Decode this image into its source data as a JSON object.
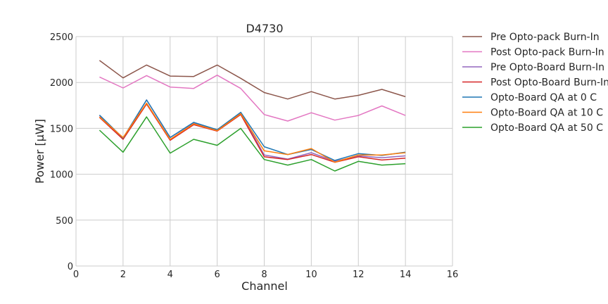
{
  "chart_data": {
    "type": "line",
    "title": "D4730",
    "xlabel": "Channel",
    "ylabel": "Power [μW]",
    "xlim": [
      0,
      16
    ],
    "ylim": [
      0,
      2500
    ],
    "xticks": [
      0,
      2,
      4,
      6,
      8,
      10,
      12,
      14,
      16
    ],
    "yticks": [
      0,
      500,
      1000,
      1500,
      2000,
      2500
    ],
    "grid": true,
    "legend_position": "outside-right-top",
    "x": [
      1,
      2,
      3,
      4,
      5,
      6,
      7,
      8,
      9,
      10,
      11,
      12,
      13,
      14
    ],
    "series": [
      {
        "name": "Pre Opto-pack Burn-In",
        "color": "#8c564b",
        "values": [
          2240,
          2050,
          2190,
          2070,
          2065,
          2190,
          2045,
          1890,
          1820,
          1900,
          1820,
          1860,
          1925,
          1845
        ]
      },
      {
        "name": "Post Opto-pack Burn-In",
        "color": "#e377c2",
        "values": [
          2060,
          1940,
          2075,
          1950,
          1935,
          2080,
          1935,
          1650,
          1580,
          1670,
          1590,
          1640,
          1745,
          1640
        ]
      },
      {
        "name": "Pre Opto-Board Burn-In",
        "color": "#9467bd",
        "values": [
          1640,
          1390,
          1810,
          1400,
          1560,
          1480,
          1670,
          1210,
          1165,
          1235,
          1140,
          1200,
          1180,
          1200
        ]
      },
      {
        "name": "Post Opto-Board Burn-In",
        "color": "#d62728",
        "values": [
          1620,
          1380,
          1765,
          1370,
          1540,
          1470,
          1650,
          1190,
          1160,
          1215,
          1130,
          1190,
          1155,
          1175
        ]
      },
      {
        "name": "Opto-Board QA at 0 C",
        "color": "#1f77b4",
        "values": [
          1645,
          1395,
          1810,
          1400,
          1565,
          1485,
          1675,
          1300,
          1215,
          1270,
          1150,
          1225,
          1205,
          1240
        ]
      },
      {
        "name": "Opto-Board QA at 10 C",
        "color": "#ff7f0e",
        "values": [
          1625,
          1400,
          1775,
          1380,
          1550,
          1475,
          1660,
          1255,
          1215,
          1280,
          1130,
          1210,
          1210,
          1235
        ]
      },
      {
        "name": "Opto-Board QA at 50 C",
        "color": "#2ca02c",
        "values": [
          1480,
          1240,
          1625,
          1230,
          1380,
          1315,
          1500,
          1160,
          1100,
          1160,
          1035,
          1140,
          1100,
          1115
        ]
      }
    ]
  }
}
